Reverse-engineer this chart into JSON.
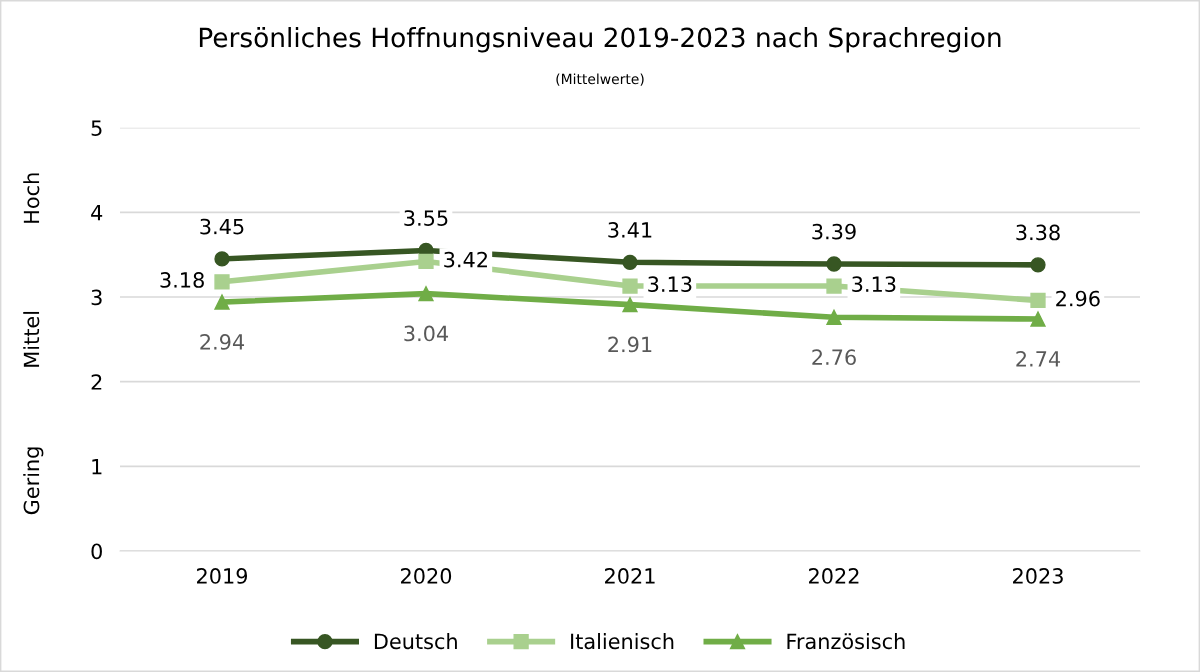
{
  "chart_data": {
    "type": "line",
    "title": "Persönliches Hoffnungsniveau 2019-2023 nach Sprachregion",
    "subtitle": "(Mittelwerte)",
    "categories": [
      "2019",
      "2020",
      "2021",
      "2022",
      "2023"
    ],
    "series": [
      {
        "name": "Deutsch",
        "color": "#375623",
        "marker": "circle",
        "values": [
          3.45,
          3.55,
          3.41,
          3.39,
          3.38
        ]
      },
      {
        "name": "Italienisch",
        "color": "#a9d08e",
        "marker": "square",
        "values": [
          3.18,
          3.42,
          3.13,
          3.13,
          2.96
        ]
      },
      {
        "name": "Französisch",
        "color": "#70ad47",
        "marker": "triangle",
        "values": [
          2.94,
          3.04,
          2.91,
          2.76,
          2.74
        ]
      }
    ],
    "ylim": [
      0,
      5
    ],
    "yticks": [
      0,
      1,
      2,
      3,
      4,
      5
    ],
    "grid": "y",
    "legend": "bottom",
    "data_labels": true,
    "line_style": "solid",
    "annotations": [
      "Gering",
      "Mittel",
      "Hoch"
    ]
  }
}
